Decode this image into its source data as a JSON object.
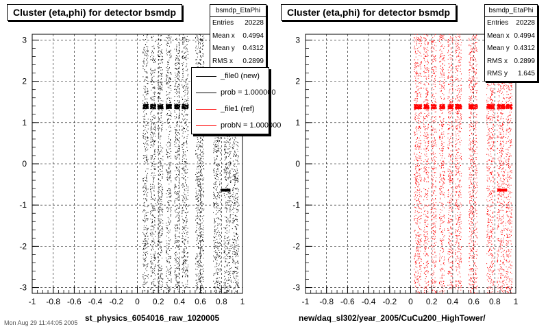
{
  "chart_data": [
    {
      "type": "scatter",
      "title": "Cluster (eta,phi) for detector bsmdp",
      "xlabel": "st_physics_6054016_raw_1020005",
      "ylabel": "",
      "xlim": [
        -1,
        1
      ],
      "ylim": [
        -3.14,
        3.14
      ],
      "xticks": [
        "-1",
        "-0.8",
        "-0.6",
        "-0.4",
        "-0.2",
        "0",
        "0.2",
        "0.4",
        "0.6",
        "0.8",
        "1"
      ],
      "yticks": [
        "-3",
        "-2",
        "-1",
        "0",
        "1",
        "2",
        "3"
      ],
      "grid": true,
      "marker_color": "#000000",
      "series": [
        {
          "eta_bands": [
            [
              0.05,
              0.1
            ],
            [
              0.12,
              0.17
            ],
            [
              0.19,
              0.24
            ],
            [
              0.27,
              0.32
            ],
            [
              0.35,
              0.4
            ],
            [
              0.42,
              0.48
            ],
            [
              0.55,
              0.63
            ],
            [
              0.72,
              0.79
            ],
            [
              0.82,
              0.89
            ],
            [
              0.9,
              0.96
            ]
          ],
          "dense_phi_band": [
            1.33,
            1.44
          ],
          "dense_phi_spot": {
            "eta": 0.84,
            "phi": -0.64
          }
        }
      ],
      "stats": {
        "name": "bsmdp_EtaPhi",
        "rows": [
          {
            "label": "Entries",
            "value": "20228"
          },
          {
            "label": "Mean x",
            "value": "0.4994"
          },
          {
            "label": "Mean y",
            "value": "0.4312"
          },
          {
            "label": "RMS x",
            "value": "0.2899"
          }
        ]
      },
      "legend": [
        {
          "label": "_file0 (new)",
          "color": "#000000"
        },
        {
          "label": "prob = 1.000000",
          "color": "#000000"
        },
        {
          "label": "_file1 (ref)",
          "color": "#ff0000"
        },
        {
          "label": "probN = 1.000000",
          "color": "#ff0000"
        }
      ]
    },
    {
      "type": "scatter",
      "title": "Cluster (eta,phi) for detector bsmdp",
      "xlabel": "new/daq_sl302/year_2005/CuCu200_HighTower/",
      "ylabel": "",
      "xlim": [
        -1,
        1
      ],
      "ylim": [
        -3.14,
        3.14
      ],
      "xticks": [
        "-1",
        "-0.8",
        "-0.6",
        "-0.4",
        "-0.2",
        "0",
        "0.2",
        "0.4",
        "0.6",
        "0.8",
        "1"
      ],
      "yticks": [
        "-3",
        "-2",
        "-1",
        "0",
        "1",
        "2",
        "3"
      ],
      "grid": true,
      "marker_color": "#ff0000",
      "series": [
        {
          "eta_bands": [
            [
              0.03,
              0.1
            ],
            [
              0.12,
              0.17
            ],
            [
              0.19,
              0.24
            ],
            [
              0.27,
              0.32
            ],
            [
              0.35,
              0.4
            ],
            [
              0.42,
              0.48
            ],
            [
              0.55,
              0.63
            ],
            [
              0.72,
              0.79
            ],
            [
              0.82,
              0.89
            ],
            [
              0.9,
              0.96
            ]
          ],
          "dense_phi_band": [
            1.33,
            1.44
          ],
          "dense_phi_spot": {
            "eta": 0.87,
            "phi": -0.64
          }
        }
      ],
      "stats": {
        "name": "bsmdp_EtaPhi",
        "rows": [
          {
            "label": "Entries",
            "value": "20228"
          },
          {
            "label": "Mean x",
            "value": "0.4994"
          },
          {
            "label": "Mean y",
            "value": "0.4312"
          },
          {
            "label": "RMS x",
            "value": "0.2899"
          },
          {
            "label": "RMS y",
            "value": "1.645"
          }
        ]
      }
    }
  ],
  "footer": "Mon Aug 29 11:44:05 2005"
}
